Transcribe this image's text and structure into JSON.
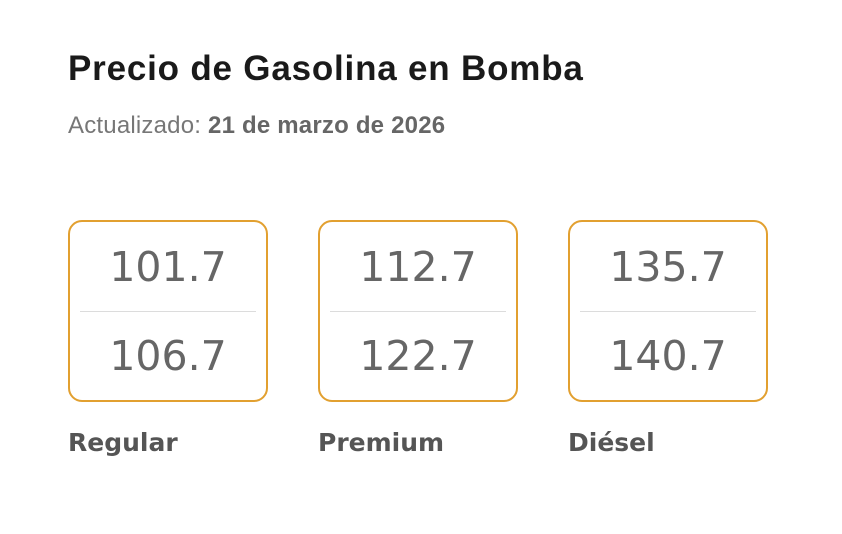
{
  "header": {
    "title": "Precio de Gasolina en Bomba",
    "updated_label": "Actualizado:",
    "updated_date": "21 de marzo de 2026"
  },
  "colors": {
    "background": "#ffffff",
    "title": "#1a1a1a",
    "updated_label": "#777777",
    "updated_date": "#666666",
    "card_border": "#E2A030",
    "price": "#666666",
    "divider": "#dcdcdc",
    "fuel_label": "#555555"
  },
  "cards": [
    {
      "label": "Regular",
      "price_top": "101.7",
      "price_bottom": "106.7"
    },
    {
      "label": "Premium",
      "price_top": "112.7",
      "price_bottom": "122.7"
    },
    {
      "label": "Diésel",
      "price_top": "135.7",
      "price_bottom": "140.7"
    }
  ]
}
